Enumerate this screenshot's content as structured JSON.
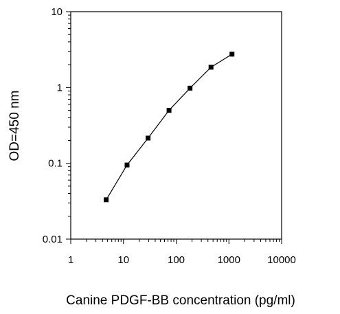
{
  "chart_data": {
    "type": "line",
    "title": "",
    "xlabel": "Canine PDGF-BB concentration (pg/ml)",
    "ylabel": "OD=450 nm",
    "xscale": "log",
    "yscale": "log",
    "xlim": [
      1,
      10000
    ],
    "ylim": [
      0.01,
      10
    ],
    "x_ticks": [
      1,
      10,
      100,
      1000,
      10000
    ],
    "x_tick_labels": [
      "1",
      "10",
      "100",
      "1000",
      "10000"
    ],
    "y_ticks": [
      0.01,
      0.1,
      1,
      10
    ],
    "y_tick_labels": [
      "0.01",
      "0.1",
      "1",
      "10"
    ],
    "grid": false,
    "legend": "none",
    "series": [
      {
        "x": [
          4.7,
          11.7,
          29.3,
          73.2,
          183,
          458,
          1144
        ],
        "y": [
          0.033,
          0.095,
          0.215,
          0.5,
          0.98,
          1.85,
          2.75
        ],
        "color": "#000000",
        "marker": "square"
      }
    ]
  }
}
